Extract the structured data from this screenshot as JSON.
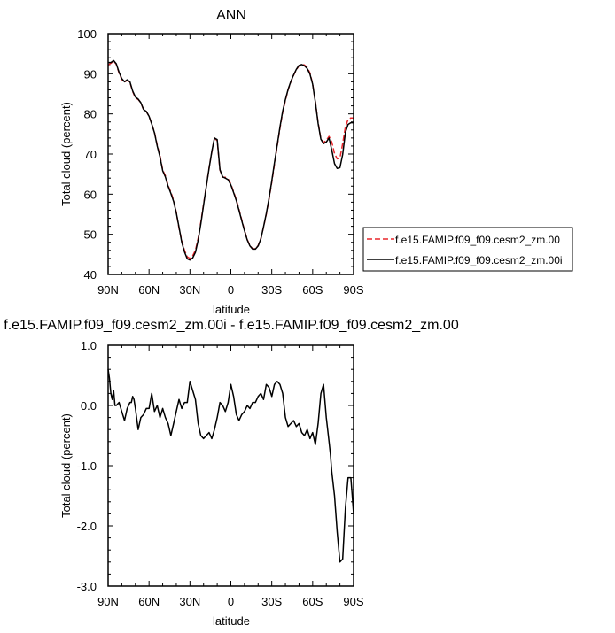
{
  "chart_data": [
    {
      "type": "line",
      "title": "ANN",
      "xlabel": "latitude",
      "ylabel": "Total cloud (percent)",
      "xlim": [
        90,
        -90
      ],
      "ylim": [
        40,
        100
      ],
      "x_ticks": [
        90,
        60,
        30,
        0,
        -30,
        -60,
        -90
      ],
      "x_tick_labels": [
        "90N",
        "60N",
        "30N",
        "0",
        "30S",
        "60S",
        "90S"
      ],
      "y_ticks": [
        40,
        50,
        60,
        70,
        80,
        90,
        100
      ],
      "y_tick_labels": [
        "40",
        "50",
        "60",
        "70",
        "80",
        "90",
        "100"
      ],
      "legend_position": "right",
      "series": [
        {
          "name": "f.e15.FAMIP.f09_f09.cesm2_zm.00",
          "color": "#e8262b",
          "dash": true,
          "x": [
            90,
            88,
            86,
            84,
            82,
            80,
            78,
            76,
            74,
            72,
            70,
            68,
            66,
            64,
            62,
            60,
            58,
            56,
            54,
            52,
            50,
            48,
            46,
            44,
            42,
            40,
            38,
            36,
            34,
            32,
            30,
            28,
            26,
            24,
            22,
            20,
            18,
            16,
            14,
            12,
            10,
            8,
            6,
            4,
            2,
            0,
            -2,
            -4,
            -6,
            -8,
            -10,
            -12,
            -14,
            -16,
            -18,
            -20,
            -22,
            -24,
            -26,
            -28,
            -30,
            -32,
            -34,
            -36,
            -38,
            -40,
            -42,
            -44,
            -46,
            -48,
            -50,
            -52,
            -54,
            -56,
            -58,
            -60,
            -62,
            -64,
            -66,
            -68,
            -70,
            -72,
            -74,
            -76,
            -78,
            -80,
            -82,
            -84,
            -86,
            -88,
            -90
          ],
          "values": [
            92.2,
            92.6,
            93.2,
            92.4,
            90.2,
            88.6,
            87.9,
            88.4,
            87.9,
            85.6,
            84.0,
            83.6,
            82.8,
            81.0,
            80.6,
            79.4,
            77.5,
            75.4,
            72.2,
            69.6,
            66.0,
            64.6,
            62.2,
            60.5,
            58.5,
            55.5,
            51.5,
            48.4,
            46.0,
            44.4,
            44.0,
            44.6,
            46.0,
            49.0,
            53.0,
            57.5,
            62.0,
            66.5,
            70.5,
            74.0,
            73.3,
            66.0,
            64.2,
            64.2,
            63.8,
            62.5,
            60.6,
            58.6,
            56.2,
            53.6,
            51.0,
            48.7,
            47.2,
            46.4,
            46.4,
            47.2,
            49.0,
            51.8,
            55.0,
            58.8,
            63.0,
            67.4,
            72.0,
            76.4,
            80.4,
            83.4,
            86.0,
            88.0,
            89.6,
            91.0,
            92.0,
            92.3,
            92.2,
            91.6,
            90.2,
            87.5,
            83.0,
            77.8,
            73.8,
            72.9,
            73.4,
            74.4,
            73.0,
            70.1,
            68.8,
            69.0,
            72.6,
            76.8,
            78.6,
            79.0,
            79.0
          ]
        },
        {
          "name": "f.e15.FAMIP.f09_f09.cesm2_zm.00i",
          "color": "#000000",
          "dash": false,
          "x": [
            90,
            88,
            86,
            84,
            82,
            80,
            78,
            76,
            74,
            72,
            70,
            68,
            66,
            64,
            62,
            60,
            58,
            56,
            54,
            52,
            50,
            48,
            46,
            44,
            42,
            40,
            38,
            36,
            34,
            32,
            30,
            28,
            26,
            24,
            22,
            20,
            18,
            16,
            14,
            12,
            10,
            8,
            6,
            4,
            2,
            0,
            -2,
            -4,
            -6,
            -8,
            -10,
            -12,
            -14,
            -16,
            -18,
            -20,
            -22,
            -24,
            -26,
            -28,
            -30,
            -32,
            -34,
            -36,
            -38,
            -40,
            -42,
            -44,
            -46,
            -48,
            -50,
            -52,
            -54,
            -56,
            -58,
            -60,
            -62,
            -64,
            -66,
            -68,
            -70,
            -72,
            -74,
            -76,
            -78,
            -80,
            -82,
            -84,
            -86,
            -88,
            -90
          ],
          "values": [
            92.8,
            92.8,
            93.3,
            92.5,
            90.4,
            88.8,
            88.0,
            88.5,
            88.0,
            85.7,
            84.2,
            83.7,
            82.8,
            81.1,
            80.6,
            79.4,
            77.5,
            75.3,
            72.0,
            69.3,
            65.8,
            64.3,
            62.0,
            60.2,
            58.2,
            55.4,
            51.8,
            48.0,
            45.6,
            43.9,
            43.6,
            44.1,
            45.5,
            48.6,
            52.6,
            57.3,
            61.9,
            66.4,
            70.6,
            74.0,
            73.6,
            66.1,
            64.3,
            64.0,
            63.6,
            62.3,
            60.4,
            58.4,
            56.0,
            53.4,
            50.9,
            48.6,
            47.1,
            46.3,
            46.3,
            47.1,
            48.9,
            51.9,
            55.2,
            59.0,
            63.3,
            67.8,
            72.2,
            76.7,
            80.7,
            83.6,
            86.1,
            88.1,
            89.7,
            91.1,
            92.1,
            92.3,
            92.0,
            91.3,
            89.9,
            87.4,
            82.9,
            77.6,
            73.7,
            72.6,
            73.0,
            74.0,
            71.0,
            67.6,
            66.4,
            66.6,
            69.9,
            75.4,
            77.4,
            77.8,
            77.8
          ]
        }
      ]
    },
    {
      "type": "line",
      "title": "f.e15.FAMIP.f09_f09.cesm2_zm.00i - f.e15.FAMIP.f09_f09.cesm2_zm.00",
      "xlabel": "latitude",
      "ylabel": "Total cloud (percent)",
      "xlim": [
        90,
        -90
      ],
      "ylim": [
        -3.0,
        1.0
      ],
      "x_ticks": [
        90,
        60,
        30,
        0,
        -30,
        -60,
        -90
      ],
      "x_tick_labels": [
        "90N",
        "60N",
        "30N",
        "0",
        "30S",
        "60S",
        "90S"
      ],
      "y_ticks": [
        1.0,
        0.0,
        -1.0,
        -2.0,
        -3.0
      ],
      "y_tick_labels": [
        "1.0",
        "0.0",
        "-1.0",
        "-2.0",
        "-3.0"
      ],
      "series": [
        {
          "color": "#000000",
          "dash": false,
          "x": [
            90,
            89,
            88,
            87,
            86,
            85,
            84,
            82,
            80,
            78,
            76,
            74,
            73,
            72,
            71,
            70,
            68,
            66,
            64,
            62,
            60,
            58,
            56,
            54,
            52,
            50,
            48,
            46,
            44,
            42,
            40,
            38,
            36,
            34,
            32,
            30,
            28,
            26,
            24,
            22,
            20,
            18,
            16,
            14,
            12,
            10,
            8,
            6,
            4,
            2,
            0,
            -2,
            -4,
            -6,
            -8,
            -10,
            -12,
            -14,
            -16,
            -18,
            -20,
            -22,
            -24,
            -26,
            -28,
            -30,
            -32,
            -34,
            -36,
            -38,
            -40,
            -42,
            -44,
            -46,
            -48,
            -50,
            -52,
            -54,
            -56,
            -58,
            -60,
            -62,
            -64,
            -66,
            -68,
            -70,
            -72,
            -73,
            -74,
            -76,
            -78,
            -80,
            -82,
            -84,
            -86,
            -88,
            -89,
            -90
          ],
          "values": [
            0.6,
            0.45,
            0.2,
            0.1,
            0.25,
            0.0,
            0.0,
            0.05,
            -0.1,
            -0.25,
            -0.05,
            0.05,
            0.05,
            0.15,
            0.1,
            -0.05,
            -0.4,
            -0.2,
            -0.15,
            -0.05,
            -0.05,
            0.2,
            -0.1,
            0.0,
            -0.2,
            -0.05,
            -0.2,
            -0.3,
            -0.5,
            -0.3,
            -0.1,
            0.1,
            -0.05,
            0.05,
            0.05,
            0.4,
            0.25,
            0.1,
            -0.3,
            -0.5,
            -0.55,
            -0.5,
            -0.45,
            -0.55,
            -0.4,
            -0.2,
            0.05,
            0.0,
            -0.1,
            0.05,
            0.35,
            0.15,
            -0.15,
            -0.25,
            -0.15,
            -0.1,
            0.0,
            -0.05,
            0.05,
            0.05,
            0.15,
            0.2,
            0.1,
            0.35,
            0.3,
            0.15,
            0.35,
            0.4,
            0.35,
            0.2,
            -0.2,
            -0.35,
            -0.3,
            -0.25,
            -0.35,
            -0.3,
            -0.45,
            -0.5,
            -0.4,
            -0.55,
            -0.45,
            -0.65,
            -0.3,
            0.2,
            0.35,
            -0.2,
            -0.6,
            -0.8,
            -1.1,
            -1.5,
            -2.1,
            -2.6,
            -2.55,
            -1.7,
            -1.2,
            -1.2,
            -1.5,
            -1.8
          ]
        }
      ]
    }
  ]
}
